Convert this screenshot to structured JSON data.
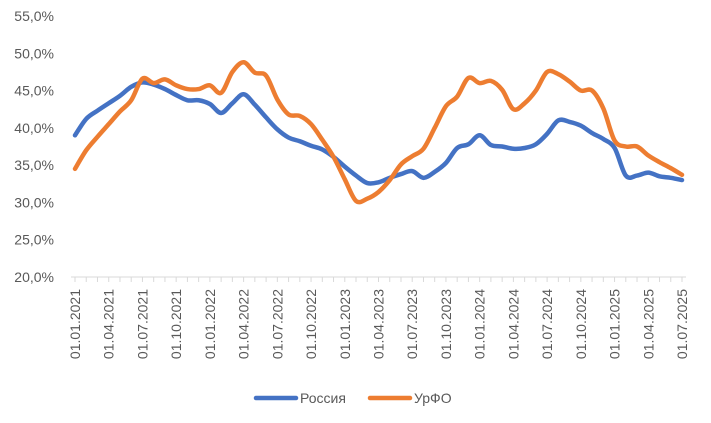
{
  "chart_data": {
    "type": "line",
    "title": "",
    "xlabel": "",
    "ylabel": "",
    "ylim": [
      0.2,
      0.55
    ],
    "y_ticks": [
      0.2,
      0.25,
      0.3,
      0.35,
      0.4,
      0.45,
      0.5,
      0.55
    ],
    "y_tick_labels": [
      "20,0%",
      "25,0%",
      "30,0%",
      "35,0%",
      "40,0%",
      "45,0%",
      "50,0%",
      "55,0%"
    ],
    "x": [
      "2021-01",
      "2021-02",
      "2021-03",
      "2021-04",
      "2021-05",
      "2021-06",
      "2021-07",
      "2021-08",
      "2021-09",
      "2021-10",
      "2021-11",
      "2021-12",
      "2022-01",
      "2022-02",
      "2022-03",
      "2022-04",
      "2022-05",
      "2022-06",
      "2022-07",
      "2022-08",
      "2022-09",
      "2022-10",
      "2022-11",
      "2022-12",
      "2023-01",
      "2023-02",
      "2023-03",
      "2023-04",
      "2023-05",
      "2023-06",
      "2023-07",
      "2023-08",
      "2023-09",
      "2023-10",
      "2023-11",
      "2023-12",
      "2024-01",
      "2024-02",
      "2024-03",
      "2024-04",
      "2024-05",
      "2024-06",
      "2024-07",
      "2024-08",
      "2024-09",
      "2024-10",
      "2024-11",
      "2024-12",
      "2025-01",
      "2025-02",
      "2025-03",
      "2025-04",
      "2025-05",
      "2025-06",
      "2025-07"
    ],
    "x_tick_labels": [
      "01.01.2021",
      "01.04.2021",
      "01.07.2021",
      "01.10.2021",
      "01.01.2022",
      "01.04.2022",
      "01.07.2022",
      "01.10.2022",
      "01.01.2023",
      "01.04.2023",
      "01.07.2023",
      "01.10.2023",
      "01.01.2024",
      "01.04.2024",
      "01.07.2024",
      "01.10.2024",
      "01.01.2025",
      "01.04.2025",
      "01.07.2025"
    ],
    "grid": false,
    "legend_position": "bottom",
    "series": [
      {
        "name": "Россия",
        "color": "#4472C4",
        "values": [
          0.39,
          0.412,
          0.423,
          0.433,
          0.443,
          0.455,
          0.461,
          0.458,
          0.452,
          0.444,
          0.437,
          0.437,
          0.432,
          0.42,
          0.433,
          0.445,
          0.431,
          0.414,
          0.398,
          0.387,
          0.382,
          0.376,
          0.371,
          0.361,
          0.348,
          0.336,
          0.326,
          0.327,
          0.333,
          0.338,
          0.342,
          0.333,
          0.341,
          0.353,
          0.373,
          0.378,
          0.39,
          0.377,
          0.375,
          0.372,
          0.373,
          0.378,
          0.392,
          0.41,
          0.408,
          0.403,
          0.393,
          0.385,
          0.373,
          0.336,
          0.336,
          0.34,
          0.335,
          0.333,
          0.33
        ]
      },
      {
        "name": "УрФО",
        "color": "#ED7D31",
        "values": [
          0.345,
          0.37,
          0.388,
          0.405,
          0.422,
          0.437,
          0.466,
          0.46,
          0.465,
          0.457,
          0.452,
          0.452,
          0.457,
          0.447,
          0.475,
          0.488,
          0.474,
          0.47,
          0.438,
          0.418,
          0.416,
          0.405,
          0.384,
          0.361,
          0.331,
          0.302,
          0.305,
          0.314,
          0.33,
          0.351,
          0.362,
          0.372,
          0.4,
          0.429,
          0.442,
          0.467,
          0.46,
          0.463,
          0.451,
          0.425,
          0.433,
          0.45,
          0.475,
          0.472,
          0.462,
          0.45,
          0.45,
          0.426,
          0.383,
          0.375,
          0.375,
          0.363,
          0.354,
          0.346,
          0.337
        ]
      }
    ]
  }
}
